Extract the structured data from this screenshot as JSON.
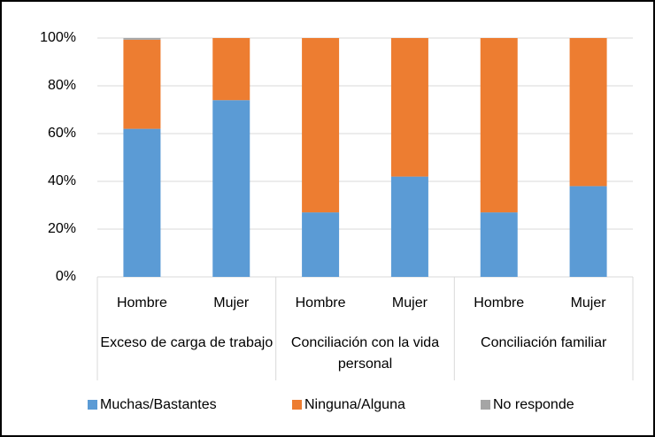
{
  "chart_data": {
    "type": "stacked_bar",
    "categories": [
      "Hombre",
      "Mujer",
      "Hombre",
      "Mujer",
      "Hombre",
      "Mujer"
    ],
    "groups": [
      "Exceso de carga de trabajo",
      "Conciliación con la vida personal",
      "Conciliación familiar"
    ],
    "series": [
      {
        "name": "Muchas/Bastantes",
        "color": "#5b9bd5",
        "values": [
          62,
          74,
          27,
          42,
          27,
          38
        ]
      },
      {
        "name": "Ninguna/Alguna",
        "color": "#ed7d31",
        "values": [
          37.3,
          26,
          73,
          58,
          73,
          62
        ]
      },
      {
        "name": "No responde",
        "color": "#a5a5a5",
        "values": [
          0.7,
          0,
          0,
          0,
          0,
          0
        ]
      }
    ],
    "ylim": [
      0,
      100
    ],
    "yticks": [
      {
        "value": 0,
        "label": "0%"
      },
      {
        "value": 20,
        "label": "20%"
      },
      {
        "value": 40,
        "label": "40%"
      },
      {
        "value": 60,
        "label": "60%"
      },
      {
        "value": 80,
        "label": "80%"
      },
      {
        "value": 100,
        "label": "100%"
      }
    ],
    "grid": true,
    "legend": "bottom"
  }
}
